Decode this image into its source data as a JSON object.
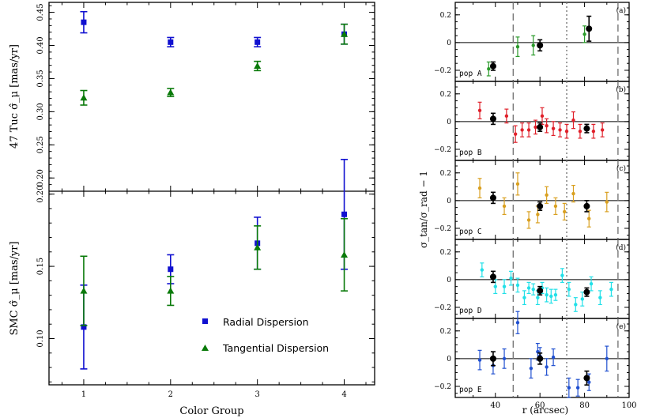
{
  "chart_data": [
    {
      "id": "left-top",
      "type": "scatter",
      "ylabel": "47 Tuc σ̂_μ [mas/yr]",
      "ylim": [
        0.18,
        0.465
      ],
      "xlim": [
        0.6,
        4.35
      ],
      "yticks": [
        0.2,
        0.25,
        0.3,
        0.35,
        0.4,
        0.45
      ],
      "yticklabels": [
        "0.20",
        "0.25",
        "0.30",
        "0.35",
        "0.40",
        "0.45"
      ],
      "series": [
        {
          "name": "Radial Dispersion",
          "color": "#1010d0",
          "marker": "square",
          "x": [
            1,
            2,
            3,
            4
          ],
          "y": [
            0.435,
            0.405,
            0.405,
            0.417
          ],
          "err": [
            0.016,
            0.007,
            0.007,
            0.015
          ]
        },
        {
          "name": "Tangential Dispersion",
          "color": "#0a7a0a",
          "marker": "triangle",
          "x": [
            1,
            2,
            3,
            4
          ],
          "y": [
            0.321,
            0.329,
            0.369,
            0.417
          ],
          "err": [
            0.011,
            0.006,
            0.007,
            0.015
          ]
        }
      ]
    },
    {
      "id": "left-bottom",
      "type": "scatter",
      "xlabel": "Color Group",
      "ylabel": "SMC σ̂_μ [mas/yr]",
      "ylim": [
        0.068,
        0.202
      ],
      "xlim": [
        0.6,
        4.35
      ],
      "xticks": [
        1,
        2,
        3,
        4
      ],
      "yticks": [
        0.1,
        0.15,
        0.2
      ],
      "yticklabels": [
        "0.10",
        "0.15",
        "0.20"
      ],
      "legend": {
        "position": "bottom-right",
        "entries": [
          "Radial Dispersion",
          "Tangential Dispersion"
        ]
      },
      "series": [
        {
          "name": "Radial Dispersion",
          "color": "#1010d0",
          "marker": "square",
          "x": [
            1,
            2,
            3,
            4
          ],
          "y": [
            0.108,
            0.148,
            0.166,
            0.186
          ],
          "err": [
            0.029,
            0.01,
            0.018,
            0.038
          ]
        },
        {
          "name": "Tangential Dispersion",
          "color": "#0a7a0a",
          "marker": "triangle",
          "x": [
            1,
            2,
            3,
            4
          ],
          "y": [
            0.133,
            0.133,
            0.163,
            0.158
          ],
          "err": [
            0.024,
            0.01,
            0.015,
            0.025
          ]
        }
      ]
    },
    {
      "id": "right-panels",
      "type": "scatter",
      "xlabel": "r (arcsec)",
      "ylabel": "σ_tan/σ_rad − 1",
      "xlim": [
        22,
        100
      ],
      "ylim": [
        -0.28,
        0.29
      ],
      "xticks": [
        40,
        60,
        80,
        100
      ],
      "yticks": [
        -0.2,
        0,
        0.2
      ],
      "yticklabels": [
        "−0.2",
        "0",
        "0.2"
      ],
      "vlines": {
        "dashed": [
          48,
          95
        ],
        "dotted": [
          72
        ]
      },
      "panels": [
        {
          "letter": "(a)",
          "name": "pop A",
          "color": "#2a9a2a",
          "x": [
            37,
            50,
            57,
            80
          ],
          "y": [
            -0.19,
            -0.03,
            -0.02,
            0.06
          ],
          "err": [
            0.05,
            0.07,
            0.07,
            0.06
          ],
          "black": {
            "x": [
              39,
              60,
              82
            ],
            "y": [
              -0.17,
              -0.02,
              0.1
            ],
            "err": [
              0.03,
              0.04,
              0.09
            ]
          }
        },
        {
          "letter": "(b)",
          "name": "pop B",
          "color": "#e0202a",
          "x": [
            33,
            45,
            49,
            52,
            55,
            58,
            61,
            63,
            66,
            69,
            72,
            75,
            78,
            84,
            88
          ],
          "y": [
            0.08,
            0.04,
            -0.09,
            -0.06,
            -0.06,
            -0.04,
            0.04,
            -0.03,
            -0.05,
            -0.06,
            -0.07,
            0.01,
            -0.07,
            -0.07,
            -0.06
          ],
          "err": [
            0.06,
            0.05,
            0.06,
            0.05,
            0.05,
            0.05,
            0.06,
            0.05,
            0.05,
            0.05,
            0.05,
            0.06,
            0.05,
            0.05,
            0.05
          ],
          "black": {
            "x": [
              39,
              60,
              81
            ],
            "y": [
              0.02,
              -0.04,
              -0.05
            ],
            "err": [
              0.04,
              0.03,
              0.03
            ]
          }
        },
        {
          "letter": "(c)",
          "name": "pop C",
          "color": "#d9a020",
          "x": [
            33,
            44,
            50,
            55,
            59,
            63,
            67,
            71,
            75,
            82,
            90
          ],
          "y": [
            0.09,
            -0.04,
            0.12,
            -0.14,
            -0.1,
            0.04,
            -0.04,
            -0.08,
            0.05,
            -0.13,
            -0.01
          ],
          "err": [
            0.07,
            0.06,
            0.08,
            0.06,
            0.06,
            0.06,
            0.06,
            0.06,
            0.06,
            0.06,
            0.07
          ],
          "black": {
            "x": [
              39,
              60,
              81
            ],
            "y": [
              0.02,
              -0.04,
              -0.04
            ],
            "err": [
              0.04,
              0.03,
              0.04
            ]
          }
        },
        {
          "letter": "(d)",
          "name": "pop D",
          "color": "#22e0e8",
          "x": [
            34,
            40,
            44,
            47,
            50,
            53,
            55,
            57,
            59,
            61,
            63,
            65,
            67,
            70,
            73,
            76,
            79,
            83,
            87,
            92
          ],
          "y": [
            0.07,
            -0.05,
            -0.05,
            0.01,
            -0.04,
            -0.13,
            -0.06,
            -0.07,
            -0.13,
            -0.06,
            -0.11,
            -0.12,
            -0.11,
            0.03,
            -0.07,
            -0.18,
            -0.14,
            -0.03,
            -0.13,
            -0.07
          ],
          "err": [
            0.05,
            0.05,
            0.05,
            0.05,
            0.05,
            0.05,
            0.04,
            0.04,
            0.05,
            0.04,
            0.05,
            0.05,
            0.04,
            0.05,
            0.05,
            0.05,
            0.05,
            0.05,
            0.05,
            0.05
          ],
          "black": {
            "x": [
              39,
              60,
              81
            ],
            "y": [
              0.02,
              -0.08,
              -0.09
            ],
            "err": [
              0.04,
              0.03,
              0.03
            ]
          }
        },
        {
          "letter": "(e)",
          "name": "pop E",
          "color": "#2050d0",
          "x": [
            33,
            39,
            44,
            50,
            56,
            59,
            60,
            63,
            66,
            73,
            77,
            82,
            90
          ],
          "y": [
            -0.01,
            -0.05,
            0.0,
            0.26,
            -0.07,
            0.05,
            0.02,
            -0.06,
            0.01,
            -0.21,
            -0.21,
            -0.17,
            0.0
          ],
          "err": [
            0.07,
            0.06,
            0.07,
            0.08,
            0.07,
            0.06,
            0.06,
            0.06,
            0.06,
            0.07,
            0.06,
            0.06,
            0.09
          ],
          "black": {
            "x": [
              39,
              60,
              81
            ],
            "y": [
              0.0,
              0.0,
              -0.14
            ],
            "err": [
              0.05,
              0.04,
              0.05
            ]
          }
        }
      ]
    }
  ]
}
